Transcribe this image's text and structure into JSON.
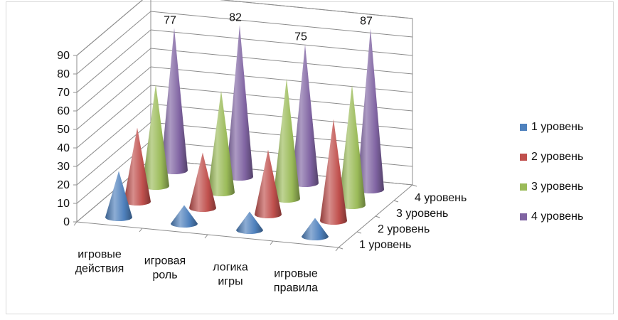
{
  "chart_data": {
    "type": "bar",
    "subtype": "3d-cone",
    "categories": [
      "игровые действия",
      "игровая роль",
      "логика игры",
      "игровые правила"
    ],
    "category_lines": [
      [
        "игровые",
        "действия"
      ],
      [
        "игровая",
        "роль"
      ],
      [
        "логика",
        "игры"
      ],
      [
        "игровые",
        "правила"
      ]
    ],
    "depth_labels": [
      "1 уровень",
      "2 уровень",
      "3 уровень",
      "4 уровень"
    ],
    "series": [
      {
        "name": "1 уровень",
        "color": "#4f81bd",
        "values": [
          25,
          10,
          10,
          10
        ]
      },
      {
        "name": "2 уровень",
        "color": "#c0504d",
        "values": [
          40,
          30,
          35,
          55
        ]
      },
      {
        "name": "3 уровень",
        "color": "#9bbb59",
        "values": [
          55,
          55,
          65,
          65
        ]
      },
      {
        "name": "4 уровень",
        "color": "#8064a2",
        "values": [
          77,
          82,
          75,
          87
        ]
      }
    ],
    "data_labels": {
      "series": "4 уровень",
      "values": [
        "77",
        "82",
        "75",
        "87"
      ]
    },
    "yticks": [
      0,
      10,
      20,
      30,
      40,
      50,
      60,
      70,
      80,
      90
    ],
    "ylim": [
      0,
      90
    ],
    "grid": true,
    "legend_position": "right"
  }
}
